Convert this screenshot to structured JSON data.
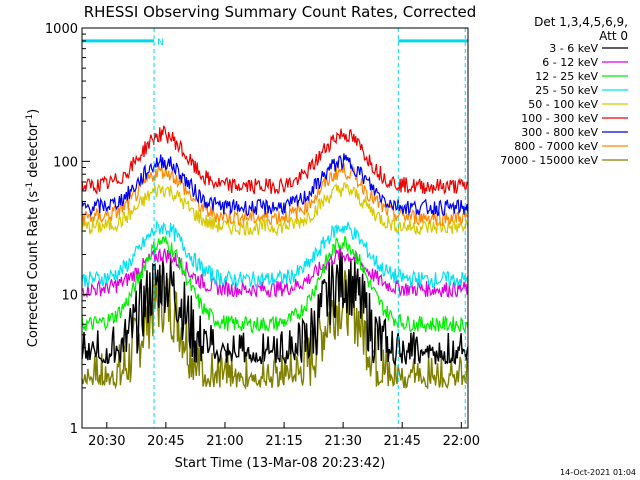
{
  "chart_data": {
    "type": "line",
    "title": "RHESSI Observing Summary Count Rates, Corrected",
    "xlabel": "Start Time (13-Mar-08 20:23:42)",
    "ylabel_main": "Corrected Count Rate (s",
    "ylabel_sup1": "-1",
    "ylabel_mid": " detector",
    "ylabel_sup2": "-1",
    "ylabel_end": ")",
    "xlim_minutes": [
      0,
      98
    ],
    "ylim": [
      1,
      1000
    ],
    "yscale": "log",
    "x_ticks": [
      {
        "label": "20:30",
        "minute": 6.3
      },
      {
        "label": "20:45",
        "minute": 21.3
      },
      {
        "label": "21:00",
        "minute": 36.3
      },
      {
        "label": "21:15",
        "minute": 51.3
      },
      {
        "label": "21:30",
        "minute": 66.3
      },
      {
        "label": "21:45",
        "minute": 81.3
      },
      {
        "label": "22:00",
        "minute": 96.3
      }
    ],
    "y_ticks": [
      {
        "label": "1",
        "value": 1
      },
      {
        "label": "10",
        "value": 10
      },
      {
        "label": "100",
        "value": 100
      },
      {
        "label": "1000",
        "value": 1000
      }
    ],
    "legend_header_1": "Det 1,3,4,5,6,9,",
    "legend_header_2": "Att 0",
    "legend_placement": "right",
    "flag_label": "N",
    "flag_intervals_minutes": [
      [
        0,
        18.3
      ],
      [
        80.3,
        98
      ]
    ],
    "night_markers_minutes": [
      0,
      18.3,
      80.3,
      97.3
    ],
    "series": [
      {
        "name": "3 - 6 keV",
        "color": "#000000",
        "min": 3,
        "max": 13,
        "floor": 3
      },
      {
        "name": "6 - 12 keV",
        "color": "#dd00dd",
        "min": 11,
        "max": 20
      },
      {
        "name": "12 - 25 keV",
        "color": "#00ee00",
        "min": 6,
        "max": 25
      },
      {
        "name": "25 - 50 keV",
        "color": "#00e0f0",
        "min": 13,
        "max": 32
      },
      {
        "name": "50 - 100 keV",
        "color": "#d8c800",
        "min": 32,
        "max": 62
      },
      {
        "name": "100 - 300 keV",
        "color": "#ee0000",
        "min": 65,
        "max": 160
      },
      {
        "name": "300 - 800 keV",
        "color": "#0000ee",
        "min": 45,
        "max": 100
      },
      {
        "name": "800 - 7000 keV",
        "color": "#ff8800",
        "min": 38,
        "max": 85
      },
      {
        "name": "7000 - 15000 keV",
        "color": "#808000",
        "min": 2,
        "max": 9,
        "floor": 2
      }
    ],
    "peaks_minutes": [
      20.5,
      66.3
    ],
    "grid": false
  },
  "footer": {
    "timestamp": "14-Oct-2021 01:04"
  }
}
